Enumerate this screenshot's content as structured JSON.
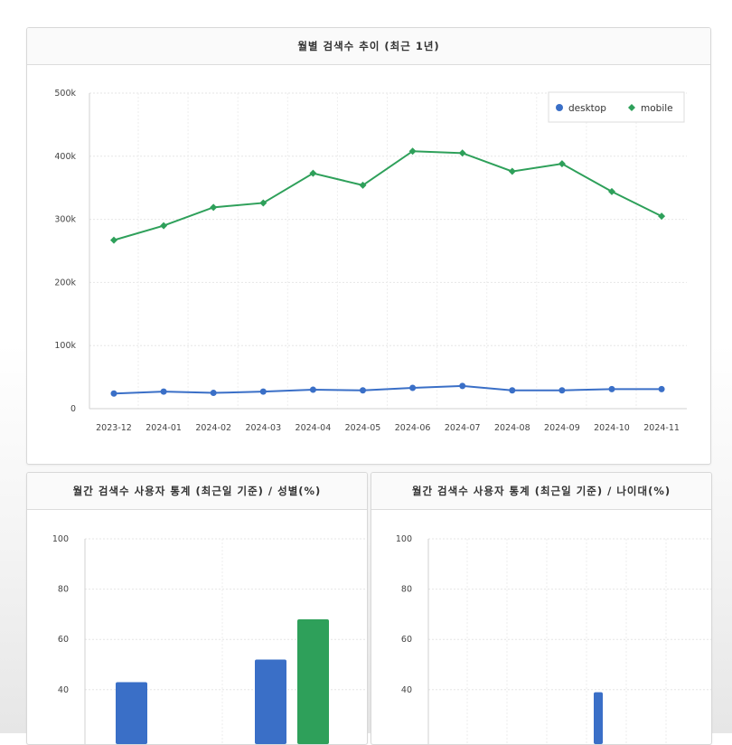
{
  "charts": {
    "trend": {
      "title": "월별 검색수 추이 (최근 1년)"
    },
    "gender": {
      "title": "월간 검색수 사용자 통계 (최근일 기준) / 성별(%)"
    },
    "age": {
      "title": "월간 검색수 사용자 통계 (최근일 기준) / 나이대(%)"
    }
  },
  "chart_data": [
    {
      "type": "line",
      "title": "월별 검색수 추이 (최근 1년)",
      "x": [
        "2023-12",
        "2024-01",
        "2024-02",
        "2024-03",
        "2024-04",
        "2024-05",
        "2024-06",
        "2024-07",
        "2024-08",
        "2024-09",
        "2024-10",
        "2024-11"
      ],
      "series": [
        {
          "name": "desktop",
          "color": "#3a6fc7",
          "values": [
            24000,
            27000,
            25000,
            27000,
            30000,
            29000,
            33000,
            36000,
            29000,
            29000,
            31000,
            31000
          ]
        },
        {
          "name": "mobile",
          "color": "#2ea05a",
          "values": [
            267000,
            290000,
            319000,
            326000,
            373000,
            354000,
            408000,
            405000,
            376000,
            388000,
            344000,
            305000
          ]
        }
      ],
      "y_ticks": [
        "0",
        "100k",
        "200k",
        "300k",
        "400k",
        "500k"
      ],
      "ylim": [
        0,
        500000
      ],
      "grid": true,
      "legend": "top-right"
    },
    {
      "type": "bar",
      "title": "월간 검색수 사용자 통계 (최근일 기준) / 성별(%)",
      "series": [
        {
          "color": "#3a6fc7",
          "values": [
            43,
            52
          ]
        },
        {
          "color": "#2ea05a",
          "values": [
            null,
            68
          ]
        }
      ],
      "y_ticks": [
        "40",
        "60",
        "80",
        "100"
      ],
      "ylim": [
        0,
        100
      ],
      "grid": true
    },
    {
      "type": "bar",
      "title": "월간 검색수 사용자 통계 (최근일 기준) / 나이대(%)",
      "series": [
        {
          "color": "#3a6fc7",
          "values": [
            null,
            null,
            null,
            39
          ]
        }
      ],
      "y_ticks": [
        "40",
        "60",
        "80",
        "100"
      ],
      "ylim": [
        0,
        100
      ],
      "grid": true
    }
  ]
}
